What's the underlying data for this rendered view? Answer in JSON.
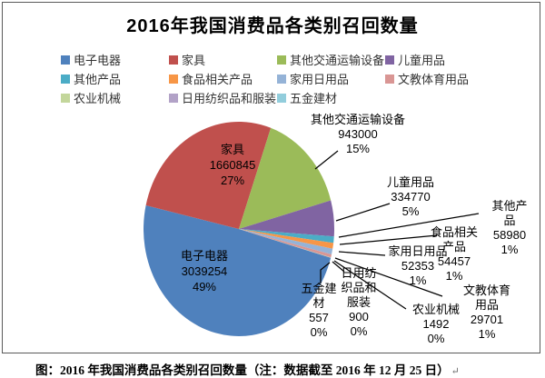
{
  "title": "2016年我国消费品各类别召回数量",
  "caption": {
    "text": "图：2016 年我国消费品各类别召回数量（注：数据截至 2016 年 12 月 25 日）",
    "end_mark": "↵"
  },
  "chart_data": {
    "type": "pie",
    "title": "2016年我国消费品各类别召回数量",
    "categories": [
      "电子电器",
      "家具",
      "其他交通运输设备",
      "儿童用品",
      "其他产品",
      "食品相关产品",
      "家用日用品",
      "文教体育用品",
      "农业机械",
      "日用纺织品和服装",
      "五金建材"
    ],
    "values": [
      3039254,
      1660845,
      943000,
      334770,
      58980,
      54457,
      52353,
      29701,
      1492,
      900,
      557
    ],
    "percents": [
      "49%",
      "27%",
      "15%",
      "5%",
      "1%",
      "1%",
      "1%",
      "1%",
      "0%",
      "0%",
      "0%"
    ],
    "colors": [
      "#4F81BD",
      "#C0504D",
      "#9BBB59",
      "#8064A2",
      "#4BACC6",
      "#F79646",
      "#95B3D7",
      "#D99694",
      "#C3D69B",
      "#B2A2C7",
      "#92CDDC"
    ],
    "rotation_deg": 105.6,
    "legend_position": "top",
    "slice_label_lines": [
      [
        "电子电器",
        "3039254",
        "49%"
      ],
      [
        "家具",
        "1660845",
        "27%"
      ],
      [
        "其他交通运输设备",
        "943000",
        "15%"
      ],
      [
        "儿童用品",
        "334770",
        "5%"
      ],
      [
        "其他产品",
        "58980",
        "1%"
      ],
      [
        "食品相关",
        "产品",
        "54457",
        "1%"
      ],
      [
        "家用日用品",
        "52353",
        "1%"
      ],
      [
        "文教体育用品",
        "29701",
        "1%"
      ],
      [
        "农业机械",
        "1492",
        "0%"
      ],
      [
        "日用纺",
        "织品和",
        "服装",
        "900",
        "0%"
      ],
      [
        "五金建",
        "材",
        "557",
        "0%"
      ]
    ]
  }
}
